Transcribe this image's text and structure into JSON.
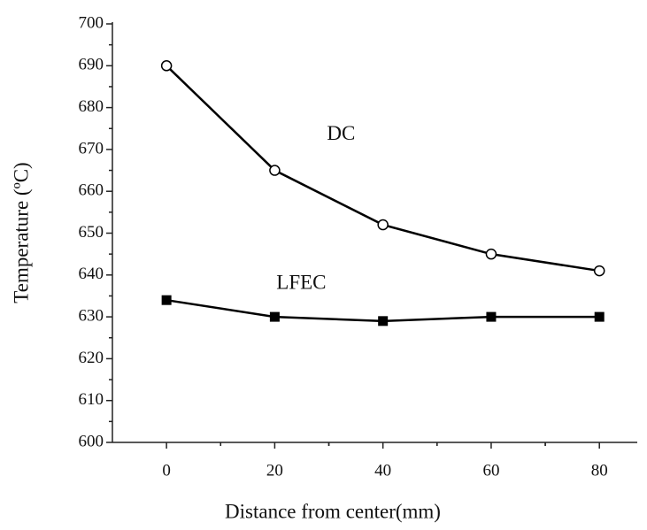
{
  "chart_data": {
    "type": "line",
    "x_label": "Distance from center(mm)",
    "y_label": "Temperature (ºC)",
    "x": [
      0,
      20,
      40,
      60,
      80
    ],
    "series": [
      {
        "name": "DC",
        "color": "#000000",
        "marker": "open-circle",
        "values": [
          690,
          665,
          652,
          645,
          641
        ]
      },
      {
        "name": "LFEC",
        "color": "#000000",
        "marker": "filled-square",
        "values": [
          634,
          630,
          629,
          630,
          630
        ]
      }
    ],
    "xlim": [
      -10,
      87
    ],
    "xticks": [
      0,
      20,
      40,
      60,
      80
    ],
    "ylim": [
      600,
      700
    ],
    "yticks": [
      600,
      610,
      620,
      630,
      640,
      650,
      660,
      670,
      680,
      690,
      700
    ],
    "grid": false
  }
}
